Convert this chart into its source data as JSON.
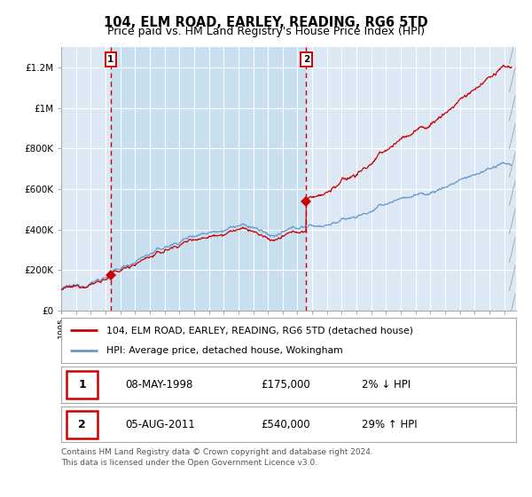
{
  "title": "104, ELM ROAD, EARLEY, READING, RG6 5TD",
  "subtitle": "Price paid vs. HM Land Registry's House Price Index (HPI)",
  "ylim_max": 1300000,
  "xlim_start": 1995.0,
  "xlim_end": 2025.8,
  "background_color": "#ffffff",
  "plot_bg_color": "#dce9f5",
  "shade_color": "#c8dff0",
  "grid_color": "#ffffff",
  "sale1_year": 1998.35,
  "sale1_price": 175000,
  "sale2_year": 2011.6,
  "sale2_price": 540000,
  "legend_line1": "104, ELM ROAD, EARLEY, READING, RG6 5TD (detached house)",
  "legend_line2": "HPI: Average price, detached house, Wokingham",
  "table_row1": [
    "1",
    "08-MAY-1998",
    "£175,000",
    "2% ↓ HPI"
  ],
  "table_row2": [
    "2",
    "05-AUG-2011",
    "£540,000",
    "29% ↑ HPI"
  ],
  "footer": "Contains HM Land Registry data © Crown copyright and database right 2024.\nThis data is licensed under the Open Government Licence v3.0.",
  "red_line_color": "#cc0000",
  "blue_line_color": "#6699cc",
  "dashed_vline_color": "#cc0000",
  "title_fontsize": 10.5,
  "subtitle_fontsize": 9,
  "ytick_labels": [
    "£0",
    "£200K",
    "£400K",
    "£600K",
    "£800K",
    "£1M",
    "£1.2M"
  ],
  "ytick_values": [
    0,
    200000,
    400000,
    600000,
    800000,
    1000000,
    1200000
  ]
}
